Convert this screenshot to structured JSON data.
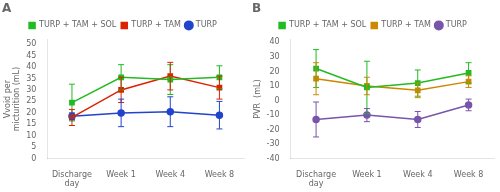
{
  "chart_data": [
    {
      "type": "line",
      "title": "A",
      "y_label": "Vvoid per\nmicturition (mL)",
      "categories": [
        "Discharge\nday",
        "Week 1",
        "Week 4",
        "Week 8"
      ],
      "series": [
        {
          "name": "TURP + TAM + SOL",
          "color": "#22bb22",
          "marker": "square",
          "values": [
            24.5,
            35.5,
            34.5,
            35.5
          ],
          "errors": [
            8.0,
            5.5,
            6.5,
            5.0
          ]
        },
        {
          "name": "TURP + TAM",
          "color": "#dd2200",
          "marker": "square",
          "values": [
            18.0,
            30.0,
            36.0,
            31.0
          ],
          "errors": [
            3.5,
            5.5,
            6.0,
            5.0
          ]
        },
        {
          "name": "TURP",
          "color": "#2244cc",
          "marker": "circle",
          "values": [
            18.5,
            20.0,
            20.5,
            19.0
          ],
          "errors": [
            1.5,
            6.0,
            6.5,
            6.0
          ]
        }
      ],
      "ylim": [
        0,
        52
      ],
      "yticks": [
        0,
        5,
        10,
        15,
        20,
        25,
        30,
        35,
        40,
        45,
        50
      ],
      "grid": false,
      "legend": "top"
    },
    {
      "type": "line",
      "title": "B",
      "y_label": "PVR  (mL)",
      "categories": [
        "Discharge\nday",
        "Week 1",
        "Week 4",
        "Week 8"
      ],
      "series": [
        {
          "name": "TURP + TAM + SOL",
          "color": "#22bb22",
          "marker": "square",
          "values": [
            22.0,
            9.0,
            12.0,
            19.0
          ],
          "errors": [
            13.0,
            18.0,
            9.0,
            7.0
          ]
        },
        {
          "name": "TURP + TAM",
          "color": "#cc8800",
          "marker": "square",
          "values": [
            15.0,
            10.0,
            7.0,
            13.0
          ],
          "errors": [
            11.0,
            6.0,
            5.0,
            4.0
          ]
        },
        {
          "name": "TURP",
          "color": "#7755aa",
          "marker": "circle",
          "values": [
            -13.0,
            -10.0,
            -13.0,
            -3.0
          ],
          "errors": [
            12.0,
            4.5,
            5.5,
            4.0
          ]
        }
      ],
      "ylim": [
        -40,
        42
      ],
      "yticks": [
        -40,
        -30,
        -20,
        -10,
        0,
        10,
        20,
        30,
        40
      ],
      "grid": false,
      "legend": "top"
    }
  ]
}
